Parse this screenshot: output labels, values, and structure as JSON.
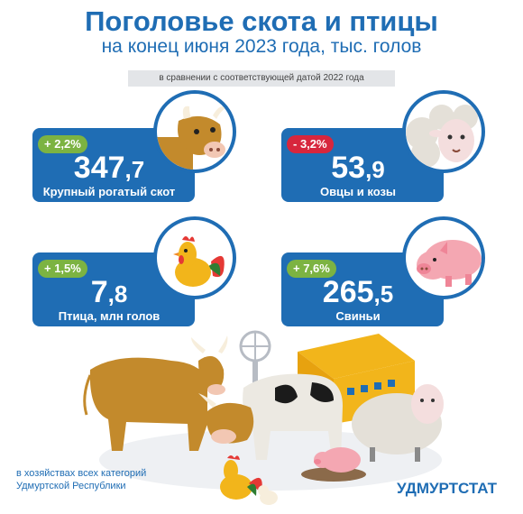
{
  "header": {
    "title": "Поголовье скота и птицы",
    "subtitle": "на конец июня 2023 года, тыс. голов",
    "comparison": "в сравнении  с соответствующей датой 2022 года"
  },
  "cards": [
    {
      "change": "+ 2,2%",
      "value_int": "347",
      "value_dec": ",7",
      "label": "Крупный рогатый скот",
      "trend": "up",
      "icon": "cow-icon"
    },
    {
      "change": "- 3,2%",
      "value_int": "53",
      "value_dec": ",9",
      "label": "Овцы и козы",
      "trend": "down",
      "icon": "sheep-icon"
    },
    {
      "change": "+ 1,5%",
      "value_int": "7",
      "value_dec": ",8",
      "label": "Птица, млн голов",
      "trend": "up",
      "icon": "rooster-icon"
    },
    {
      "change": "+ 7,6%",
      "value_int": "265",
      "value_dec": ",5",
      "label": "Свиньи",
      "trend": "up",
      "icon": "pig-icon"
    }
  ],
  "footer": {
    "note_line1": "в хозяйствах всех категорий",
    "note_line2": "Удмуртской Республики",
    "brand": "УДМУРТСТАТ"
  },
  "colors": {
    "primary": "#1f6db4",
    "increase": "#7cb342",
    "decrease": "#d7263d",
    "cow": "#c38a2c",
    "barn": "#f2b51b"
  }
}
